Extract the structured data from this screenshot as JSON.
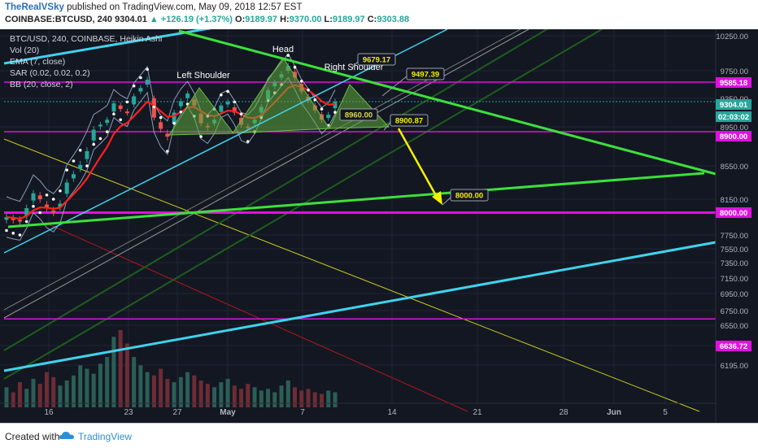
{
  "header": {
    "author": "TheRealVSky",
    "publish_text": "published on TradingView.com, May 09, 2018 12:57 EST",
    "symbol": "COINBASE:BTCUSD, 240",
    "last": "9304.01",
    "change": "+126.19 (+1.37%)",
    "open_label": "O:",
    "open": "9189.97",
    "high_label": "H:",
    "high": "9370.00",
    "low_label": "L:",
    "low": "9189.97",
    "close_label": "C:",
    "close": "9303.88"
  },
  "legend": {
    "title": "BTC/USD, 240, COINBASE, Heikin Ashi",
    "vol": "Vol (20)",
    "ema": "EMA (7, close)",
    "sar": "SAR (0.02, 0.02, 0.2)",
    "bb": "BB (20, close, 2)"
  },
  "footer": {
    "created_with": "Created with",
    "brand": "TradingView"
  },
  "colors": {
    "background": "#131722",
    "bull": "#26a69a",
    "bear": "#ef5350",
    "cyan_trend": "#3fd3ec",
    "green_trend": "#3ce03c",
    "magenta_level": "#e010e0",
    "yellow_arrow": "#f2f200",
    "ema": "#ff2020",
    "bb": "#8aa0b8"
  },
  "chart_data": {
    "type": "candlestick",
    "price_axis": {
      "ticks": [
        "10250.00",
        "9750.00",
        "9350.00",
        "8950.00",
        "8550.00",
        "8150.00",
        "7750.00",
        "7550.00",
        "7350.00",
        "7150.00",
        "6950.00",
        "6750.00",
        "6550.00",
        "6375.00",
        "6195.00"
      ],
      "ylim": [
        6100,
        10350
      ]
    },
    "time_axis": {
      "ticks": [
        "16",
        "23",
        "27",
        "May",
        "7",
        "14",
        "21",
        "28",
        "Jun",
        "5"
      ]
    },
    "price_labels": [
      {
        "text": "9585.18",
        "color": "#e010e0"
      },
      {
        "text": "9304.01",
        "color": "#26a69a"
      },
      {
        "text": "02:03:02",
        "color": "#26a69a"
      },
      {
        "text": "8900.00",
        "color": "#e010e0"
      },
      {
        "text": "8000.00",
        "color": "#e010e0"
      },
      {
        "text": "6636.72",
        "color": "#e010e0"
      }
    ],
    "pattern": {
      "name": "Head and Shoulders",
      "labels": [
        "Left Shoulder",
        "Head",
        "Right Shoulder"
      ]
    },
    "callouts": [
      "9679.17",
      "9497.39",
      "8960.00",
      "8900.87",
      "8000.00"
    ],
    "horizontal_levels": [
      9585.18,
      8900.0,
      8000.0,
      6636.72
    ],
    "approx_close_series": [
      7950,
      7920,
      7900,
      8050,
      8220,
      8150,
      8050,
      8000,
      8100,
      8350,
      8450,
      8560,
      8700,
      8920,
      8980,
      9050,
      9280,
      9200,
      9150,
      9380,
      9500,
      9620,
      9080,
      8930,
      8850,
      9150,
      9310,
      9420,
      9250,
      9000,
      8950,
      9050,
      9250,
      9300,
      9150,
      8980,
      8950,
      9050,
      9230,
      9470,
      9580,
      9700,
      9820,
      9650,
      9450,
      9320,
      9180,
      9050,
      9120,
      9304
    ],
    "approx_volume": [
      120,
      90,
      150,
      110,
      170,
      140,
      210,
      180,
      130,
      160,
      190,
      250,
      230,
      200,
      260,
      300,
      420,
      460,
      380,
      300,
      250,
      210,
      190,
      230,
      170,
      150,
      180,
      210,
      190,
      160,
      140,
      120,
      150,
      170,
      130,
      110,
      140,
      120,
      100,
      110,
      90,
      130,
      160,
      120,
      100,
      110,
      90,
      80,
      100,
      90
    ]
  }
}
